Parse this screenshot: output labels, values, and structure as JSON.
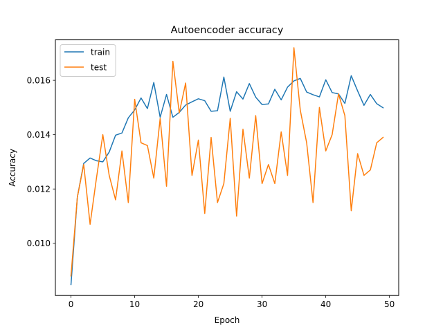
{
  "chart_data": {
    "type": "line",
    "title": "Autoencoder accuracy",
    "xlabel": "Epoch",
    "ylabel": "Accuracy",
    "xlim": [
      -2.45,
      51.45
    ],
    "ylim": [
      0.00808,
      0.01749
    ],
    "xticks": [
      0,
      10,
      20,
      30,
      40,
      50
    ],
    "yticks": [
      0.01,
      0.012,
      0.014,
      0.016
    ],
    "ytick_labels": [
      "0.010",
      "0.012",
      "0.014",
      "0.016"
    ],
    "grid": false,
    "legend": "upper left",
    "x": [
      0,
      1,
      2,
      3,
      4,
      5,
      6,
      7,
      8,
      9,
      10,
      11,
      12,
      13,
      14,
      15,
      16,
      17,
      18,
      19,
      20,
      21,
      22,
      23,
      24,
      25,
      26,
      27,
      28,
      29,
      30,
      31,
      32,
      33,
      34,
      35,
      36,
      37,
      38,
      39,
      40,
      41,
      42,
      43,
      44,
      45,
      46,
      47,
      48,
      49
    ],
    "series": [
      {
        "name": "train",
        "color": "#1f77b4",
        "values": [
          0.00848,
          0.0117,
          0.01294,
          0.01314,
          0.01304,
          0.013,
          0.01336,
          0.01398,
          0.01406,
          0.01462,
          0.01491,
          0.01535,
          0.01496,
          0.01592,
          0.01464,
          0.01548,
          0.01464,
          0.01482,
          0.01509,
          0.01521,
          0.01532,
          0.01525,
          0.01486,
          0.01488,
          0.01612,
          0.01486,
          0.01558,
          0.01531,
          0.01588,
          0.01538,
          0.01511,
          0.01513,
          0.01567,
          0.01528,
          0.01575,
          0.01598,
          0.01607,
          0.01557,
          0.01547,
          0.01539,
          0.01602,
          0.01555,
          0.0155,
          0.01515,
          0.01617,
          0.01561,
          0.01508,
          0.01548,
          0.01514,
          0.01499
        ]
      },
      {
        "name": "test",
        "color": "#ff7f0e",
        "values": [
          0.0088,
          0.0117,
          0.0129,
          0.0107,
          0.0124,
          0.014,
          0.0125,
          0.0116,
          0.0134,
          0.0115,
          0.0153,
          0.0137,
          0.0136,
          0.0124,
          0.0146,
          0.0121,
          0.0167,
          0.0148,
          0.0159,
          0.0125,
          0.0138,
          0.0111,
          0.0139,
          0.0115,
          0.0122,
          0.0146,
          0.011,
          0.0142,
          0.0124,
          0.0147,
          0.0122,
          0.0129,
          0.0122,
          0.0141,
          0.0125,
          0.0172,
          0.0149,
          0.0137,
          0.0115,
          0.015,
          0.0134,
          0.014,
          0.0155,
          0.0147,
          0.0112,
          0.0133,
          0.0125,
          0.0127,
          0.0137,
          0.0139
        ]
      }
    ]
  }
}
